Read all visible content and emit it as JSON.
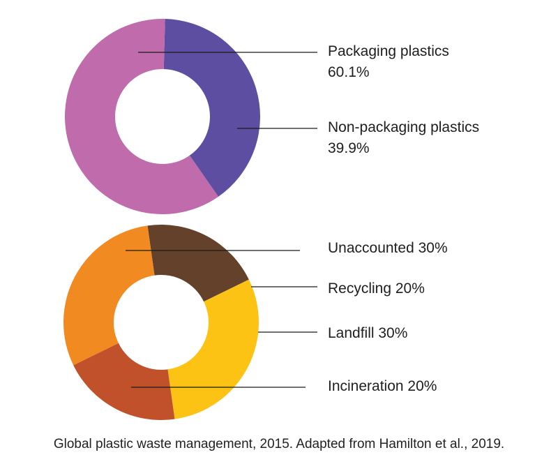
{
  "caption": "Global plastic waste management, 2015. Adapted from Hamilton et al., 2019.",
  "chart_data": [
    {
      "type": "pie",
      "donut": true,
      "slices": [
        {
          "name": "Packaging plastics",
          "label_lines": [
            "Packaging plastics",
            "60.1%"
          ],
          "value": 60.1,
          "color": "#c06bab"
        },
        {
          "name": "Non-packaging plastics",
          "label_lines": [
            "Non-packaging plastics",
            "39.9%"
          ],
          "value": 39.9,
          "color": "#5d4ea2"
        }
      ]
    },
    {
      "type": "pie",
      "donut": true,
      "slices": [
        {
          "name": "Unaccounted",
          "label_lines": [
            "Unaccounted 30%"
          ],
          "value": 30,
          "color": "#f28a22"
        },
        {
          "name": "Recycling",
          "label_lines": [
            "Recycling 20%"
          ],
          "value": 20,
          "color": "#63412a"
        },
        {
          "name": "Landfill",
          "label_lines": [
            "Landfill 30%"
          ],
          "value": 30,
          "color": "#fcc314"
        },
        {
          "name": "Incineration",
          "label_lines": [
            "Incineration 20%"
          ],
          "value": 20,
          "color": "#c0512a"
        }
      ]
    }
  ]
}
